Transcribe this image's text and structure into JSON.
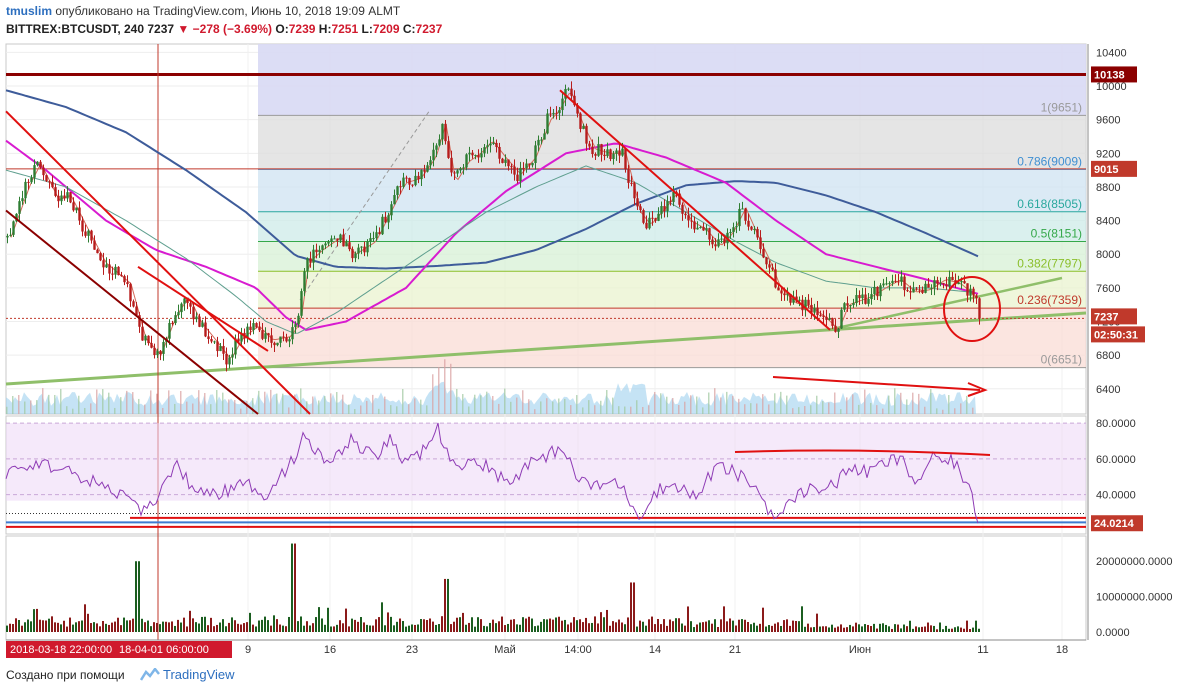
{
  "header": {
    "user": "tmuslim",
    "published": "опубликовано на TradingView.com, Июнь 10, 2018 19:09 ALMT",
    "symbol": "BITTREX:BTCUSDT, 240",
    "last": "7237",
    "change": "−278 (−3.69%)",
    "o_label": "O:",
    "o": "7239",
    "h_label": "H:",
    "h": "7251",
    "l_label": "L:",
    "l": "7209",
    "c_label": "C:",
    "c": "7237"
  },
  "footer": {
    "made_with": "Создано при помощи",
    "brand": "TradingView"
  },
  "colors": {
    "up": "#2e7d32",
    "down": "#b71c1c",
    "ma_fast": "#d46a5a",
    "ma_slow": "#5f9f8f",
    "ma_magenta": "#d81bd0",
    "ma_blue": "#3e5c9a",
    "trend_red": "#e01010",
    "trend_green": "#8fbf6a",
    "rsi": "#8e3bb5"
  },
  "chart_data": {
    "type": "candlestick",
    "price_axis": {
      "ticks": [
        10400,
        10000,
        9600,
        9200,
        8800,
        8400,
        8000,
        7600,
        7200,
        6800,
        6400
      ],
      "ylim": [
        6100,
        10500
      ]
    },
    "time_axis_ticks": [
      "9",
      "16",
      "23",
      "Май",
      "14:00",
      "14",
      "21",
      "Июн",
      "11",
      "18"
    ],
    "crosshair_time_labels": [
      "2018-03-18 22:00:00",
      "18-04-01 06:00:00"
    ],
    "last_price_label": "7237",
    "countdown_label": "02:50:31",
    "resistance_level": {
      "value": 10138,
      "label": "10138"
    },
    "marked_level": {
      "value": 9015,
      "label": "9015"
    },
    "fibonacci": [
      {
        "ratio": "1",
        "value": 9651,
        "label": "1(9651)"
      },
      {
        "ratio": "0.786",
        "value": 9009,
        "label": "0.786(9009)"
      },
      {
        "ratio": "0.618",
        "value": 8505,
        "label": "0.618(8505)"
      },
      {
        "ratio": "0.5",
        "value": 8151,
        "label": "0.5(8151)"
      },
      {
        "ratio": "0.382",
        "value": 7797,
        "label": "0.382(7797)"
      },
      {
        "ratio": "0.236",
        "value": 7359,
        "label": "0.236(7359)"
      },
      {
        "ratio": "0",
        "value": 6651,
        "label": "0(6651)"
      }
    ],
    "price_anchors": [
      [
        0,
        8200
      ],
      [
        20,
        8850
      ],
      [
        30,
        9080
      ],
      [
        48,
        8650
      ],
      [
        60,
        8700
      ],
      [
        75,
        8350
      ],
      [
        95,
        7900
      ],
      [
        120,
        7650
      ],
      [
        135,
        7000
      ],
      [
        150,
        6800
      ],
      [
        165,
        7250
      ],
      [
        178,
        7500
      ],
      [
        190,
        7200
      ],
      [
        205,
        6980
      ],
      [
        220,
        6750
      ],
      [
        232,
        7000
      ],
      [
        248,
        7150
      ],
      [
        262,
        6980
      ],
      [
        280,
        7020
      ],
      [
        290,
        7200
      ],
      [
        298,
        7900
      ],
      [
        312,
        8050
      ],
      [
        330,
        8200
      ],
      [
        345,
        8000
      ],
      [
        365,
        8150
      ],
      [
        380,
        8500
      ],
      [
        395,
        8850
      ],
      [
        410,
        8900
      ],
      [
        425,
        9150
      ],
      [
        435,
        9550
      ],
      [
        445,
        8850
      ],
      [
        458,
        9100
      ],
      [
        470,
        9200
      ],
      [
        482,
        9350
      ],
      [
        495,
        9150
      ],
      [
        510,
        8950
      ],
      [
        525,
        9150
      ],
      [
        540,
        9600
      ],
      [
        548,
        9700
      ],
      [
        560,
        9950
      ],
      [
        572,
        9550
      ],
      [
        585,
        9250
      ],
      [
        600,
        9200
      ],
      [
        615,
        9200
      ],
      [
        630,
        8500
      ],
      [
        640,
        8350
      ],
      [
        655,
        8550
      ],
      [
        668,
        8750
      ],
      [
        680,
        8400
      ],
      [
        695,
        8300
      ],
      [
        710,
        8100
      ],
      [
        722,
        8250
      ],
      [
        735,
        8550
      ],
      [
        748,
        8200
      ],
      [
        760,
        7900
      ],
      [
        770,
        7600
      ],
      [
        785,
        7420
      ],
      [
        800,
        7380
      ],
      [
        815,
        7250
      ],
      [
        828,
        7100
      ],
      [
        838,
        7400
      ],
      [
        850,
        7450
      ],
      [
        862,
        7500
      ],
      [
        875,
        7600
      ],
      [
        890,
        7700
      ],
      [
        905,
        7550
      ],
      [
        920,
        7580
      ],
      [
        935,
        7700
      ],
      [
        950,
        7650
      ],
      [
        960,
        7550
      ],
      [
        968,
        7450
      ],
      [
        972,
        7237
      ]
    ],
    "ma_slow_anchors": [
      [
        0,
        9000
      ],
      [
        60,
        8800
      ],
      [
        120,
        8400
      ],
      [
        180,
        7950
      ],
      [
        230,
        7500
      ],
      [
        260,
        7200
      ],
      [
        290,
        7050
      ],
      [
        330,
        7300
      ],
      [
        380,
        7700
      ],
      [
        430,
        8100
      ],
      [
        480,
        8500
      ],
      [
        530,
        8800
      ],
      [
        580,
        9050
      ],
      [
        630,
        8850
      ],
      [
        680,
        8500
      ],
      [
        730,
        8150
      ],
      [
        770,
        7900
      ],
      [
        820,
        7680
      ],
      [
        870,
        7600
      ],
      [
        920,
        7600
      ],
      [
        965,
        7550
      ]
    ],
    "ma_blue_anchors": [
      [
        0,
        9950
      ],
      [
        60,
        9750
      ],
      [
        120,
        9450
      ],
      [
        180,
        9000
      ],
      [
        240,
        8500
      ],
      [
        290,
        7980
      ],
      [
        330,
        7850
      ],
      [
        380,
        7830
      ],
      [
        430,
        7860
      ],
      [
        480,
        7900
      ],
      [
        530,
        8050
      ],
      [
        580,
        8300
      ],
      [
        630,
        8600
      ],
      [
        680,
        8820
      ],
      [
        730,
        8870
      ],
      [
        770,
        8850
      ],
      [
        820,
        8700
      ],
      [
        870,
        8500
      ],
      [
        920,
        8250
      ],
      [
        975,
        7960
      ]
    ],
    "ma_magenta_anchors": [
      [
        0,
        9350
      ],
      [
        40,
        9000
      ],
      [
        100,
        8400
      ],
      [
        150,
        8050
      ],
      [
        200,
        7850
      ],
      [
        250,
        7600
      ],
      [
        280,
        7250
      ],
      [
        300,
        7100
      ],
      [
        340,
        7200
      ],
      [
        400,
        7600
      ],
      [
        450,
        8250
      ],
      [
        500,
        8750
      ],
      [
        560,
        9200
      ],
      [
        610,
        9320
      ],
      [
        660,
        9150
      ],
      [
        720,
        8850
      ],
      [
        770,
        8400
      ],
      [
        820,
        8000
      ],
      [
        870,
        7850
      ],
      [
        920,
        7700
      ],
      [
        975,
        7520
      ]
    ],
    "rsi": {
      "ticks": [
        80,
        60,
        40
      ],
      "tick_labels": [
        "80.0000",
        "60.0000",
        "40.0000"
      ],
      "ylim": [
        18,
        84
      ],
      "last_label": "24.0214",
      "anchors": [
        [
          0,
          52
        ],
        [
          30,
          58
        ],
        [
          60,
          54
        ],
        [
          90,
          46
        ],
        [
          120,
          40
        ],
        [
          135,
          28
        ],
        [
          150,
          38
        ],
        [
          170,
          56
        ],
        [
          190,
          42
        ],
        [
          210,
          40
        ],
        [
          240,
          46
        ],
        [
          260,
          40
        ],
        [
          285,
          58
        ],
        [
          300,
          74
        ],
        [
          320,
          56
        ],
        [
          345,
          70
        ],
        [
          370,
          60
        ],
        [
          385,
          72
        ],
        [
          400,
          56
        ],
        [
          420,
          66
        ],
        [
          432,
          78
        ],
        [
          445,
          56
        ],
        [
          470,
          60
        ],
        [
          490,
          52
        ],
        [
          505,
          46
        ],
        [
          520,
          58
        ],
        [
          540,
          60
        ],
        [
          555,
          68
        ],
        [
          570,
          50
        ],
        [
          590,
          44
        ],
        [
          610,
          48
        ],
        [
          625,
          36
        ],
        [
          633,
          28
        ],
        [
          650,
          42
        ],
        [
          670,
          46
        ],
        [
          690,
          38
        ],
        [
          710,
          56
        ],
        [
          730,
          52
        ],
        [
          750,
          44
        ],
        [
          765,
          30
        ],
        [
          775,
          28
        ],
        [
          790,
          40
        ],
        [
          810,
          44
        ],
        [
          830,
          46
        ],
        [
          845,
          56
        ],
        [
          860,
          52
        ],
        [
          880,
          58
        ],
        [
          895,
          60
        ],
        [
          910,
          46
        ],
        [
          925,
          60
        ],
        [
          950,
          58
        ],
        [
          965,
          40
        ],
        [
          972,
          26
        ]
      ]
    },
    "volume": {
      "tick_labels": [
        "20000000.0000",
        "10000000.0000",
        "0.0000"
      ],
      "ylim": [
        0,
        26000000
      ]
    }
  }
}
